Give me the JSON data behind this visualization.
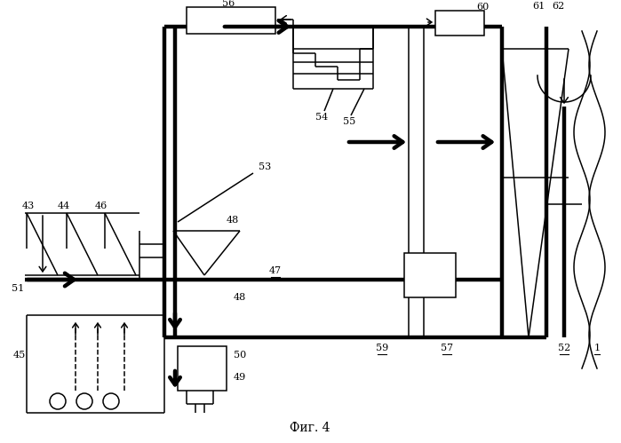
{
  "bg": "#ffffff",
  "lc": "#000000",
  "tlw": 3.2,
  "nlw": 1.1,
  "caption": "Фиг. 4",
  "fig_w": 6.99,
  "fig_h": 4.99,
  "dpi": 100
}
